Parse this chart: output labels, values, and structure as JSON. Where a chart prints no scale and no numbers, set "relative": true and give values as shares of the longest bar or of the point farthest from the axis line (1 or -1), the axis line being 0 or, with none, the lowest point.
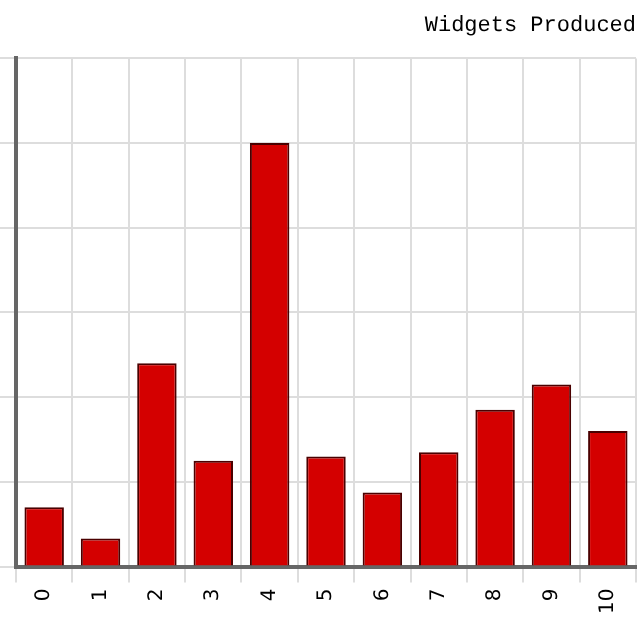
{
  "chart_data": {
    "type": "bar",
    "title": "Widgets Produced",
    "relative": true,
    "categories": [
      "0",
      "1",
      "2",
      "3",
      "4",
      "5",
      "6",
      "7",
      "8",
      "9",
      "10"
    ],
    "values": [
      0.14,
      0.066,
      0.48,
      0.25,
      1,
      0.26,
      0.175,
      0.27,
      0.37,
      0.43,
      0.32
    ],
    "color": "#d40000",
    "grid": true,
    "legend": false
  }
}
